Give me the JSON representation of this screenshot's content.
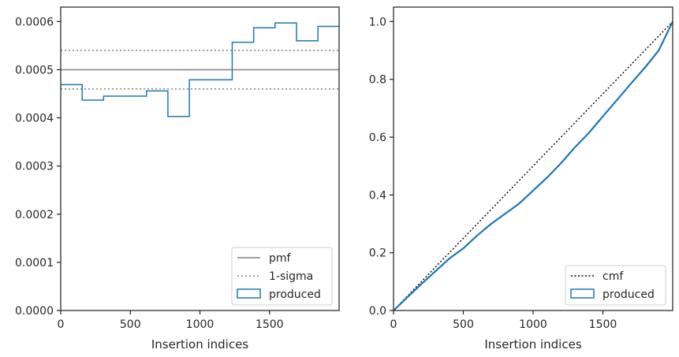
{
  "colors": {
    "produced": "#1f77b4",
    "pmf": "#808080",
    "sigma": "#808080",
    "cmf": "#000000",
    "frame": "#262626"
  },
  "chart_data": [
    {
      "type": "line",
      "xlabel": "Insertion indices",
      "ylabel": "",
      "xlim": [
        0,
        2000
      ],
      "ylim": [
        0,
        0.00063
      ],
      "xticks": [
        0,
        500,
        1000,
        1500
      ],
      "xtick_labels": [
        "0",
        "500",
        "1000",
        "1500"
      ],
      "yticks": [
        0,
        0.0001,
        0.0002,
        0.0003,
        0.0004,
        0.0005,
        0.0006
      ],
      "ytick_labels": [
        "0.0000",
        "0.0001",
        "0.0002",
        "0.0003",
        "0.0004",
        "0.0005",
        "0.0006"
      ],
      "grid": false,
      "legend_position": "lower-right",
      "legend": [
        "pmf",
        "1-sigma",
        "produced"
      ],
      "pmf": 0.0005,
      "sigma_band": [
        0.00046,
        0.00054
      ],
      "produced": {
        "bin_edges": [
          0,
          154,
          308,
          462,
          616,
          770,
          924,
          1078,
          1232,
          1386,
          1540,
          1694,
          1848,
          2000
        ],
        "values": [
          0.000469,
          0.000437,
          0.000445,
          0.000445,
          0.000456,
          0.000403,
          0.000479,
          0.000479,
          0.000557,
          0.000587,
          0.000597,
          0.00056,
          0.00059
        ]
      }
    },
    {
      "type": "line",
      "xlabel": "Insertion indices",
      "ylabel": "",
      "xlim": [
        0,
        2000
      ],
      "ylim": [
        0,
        1.05
      ],
      "xticks": [
        0,
        500,
        1000,
        1500
      ],
      "xtick_labels": [
        "0",
        "500",
        "1000",
        "1500"
      ],
      "yticks": [
        0,
        0.2,
        0.4,
        0.6,
        0.8,
        1.0
      ],
      "ytick_labels": [
        "0.0",
        "0.2",
        "0.4",
        "0.6",
        "0.8",
        "1.0"
      ],
      "grid": false,
      "legend_position": "lower-right",
      "legend": [
        "cmf",
        "produced"
      ],
      "cmf": {
        "x": [
          0,
          2000
        ],
        "y": [
          0,
          1.0
        ]
      },
      "produced": {
        "x": [
          0,
          100,
          200,
          300,
          400,
          500,
          600,
          700,
          800,
          900,
          1000,
          1100,
          1200,
          1300,
          1400,
          1500,
          1600,
          1700,
          1800,
          1900,
          2000
        ],
        "y": [
          0,
          0.046,
          0.092,
          0.136,
          0.18,
          0.215,
          0.26,
          0.3,
          0.335,
          0.37,
          0.415,
          0.46,
          0.51,
          0.565,
          0.615,
          0.672,
          0.728,
          0.785,
          0.84,
          0.9,
          1.0
        ]
      }
    }
  ]
}
